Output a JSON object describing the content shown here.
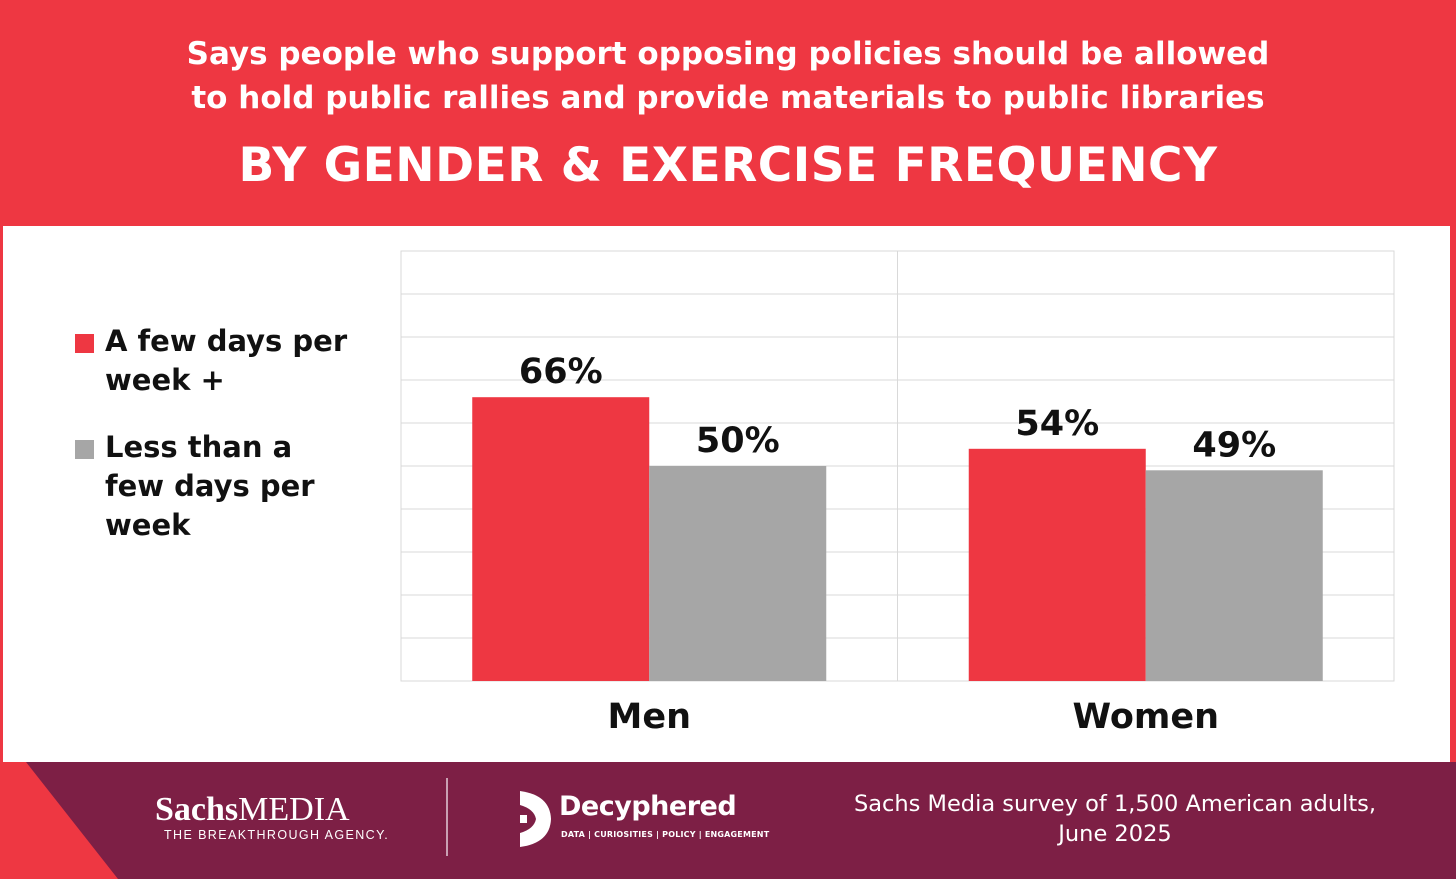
{
  "header": {
    "subtitle_line1": "Says people who support opposing policies should be allowed",
    "subtitle_line2": "to hold public rallies and provide materials to public libraries",
    "title": "BY GENDER & EXERCISE FREQUENCY"
  },
  "colors": {
    "accent_red": "#ee3742",
    "series_gray": "#a6a6a6",
    "footer_maroon": "#7d1f45",
    "text": "#111111"
  },
  "legend": {
    "items": [
      {
        "label_line1": "A few days per",
        "label_line2": "week +",
        "color": "#ee3742"
      },
      {
        "label_line1": "Less than a",
        "label_line2": "few days per",
        "label_line3": "week",
        "color": "#a6a6a6"
      }
    ]
  },
  "chart_data": {
    "type": "bar",
    "categories": [
      "Men",
      "Women"
    ],
    "series": [
      {
        "name": "A few days per week +",
        "values": [
          66,
          54
        ],
        "labels": [
          "66%",
          "54%"
        ],
        "color": "#ee3742"
      },
      {
        "name": "Less than a few days per week",
        "values": [
          50,
          49
        ],
        "labels": [
          "50%",
          "49%"
        ],
        "color": "#a6a6a6"
      }
    ],
    "ylim": [
      0,
      100
    ],
    "grid": true,
    "legend_position": "left",
    "xlabel": "",
    "ylabel": ""
  },
  "footer": {
    "logo1_name_bold": "Sachs",
    "logo1_name_light": "MEDIA",
    "logo1_tagline": "THE BREAKTHROUGH AGENCY.",
    "logo2_name": "Decyphered",
    "logo2_tagline": "DATA | CURIOSITIES | POLICY | ENGAGEMENT",
    "source_line1": "Sachs Media survey of 1,500 American adults,",
    "source_line2": "June 2025"
  }
}
